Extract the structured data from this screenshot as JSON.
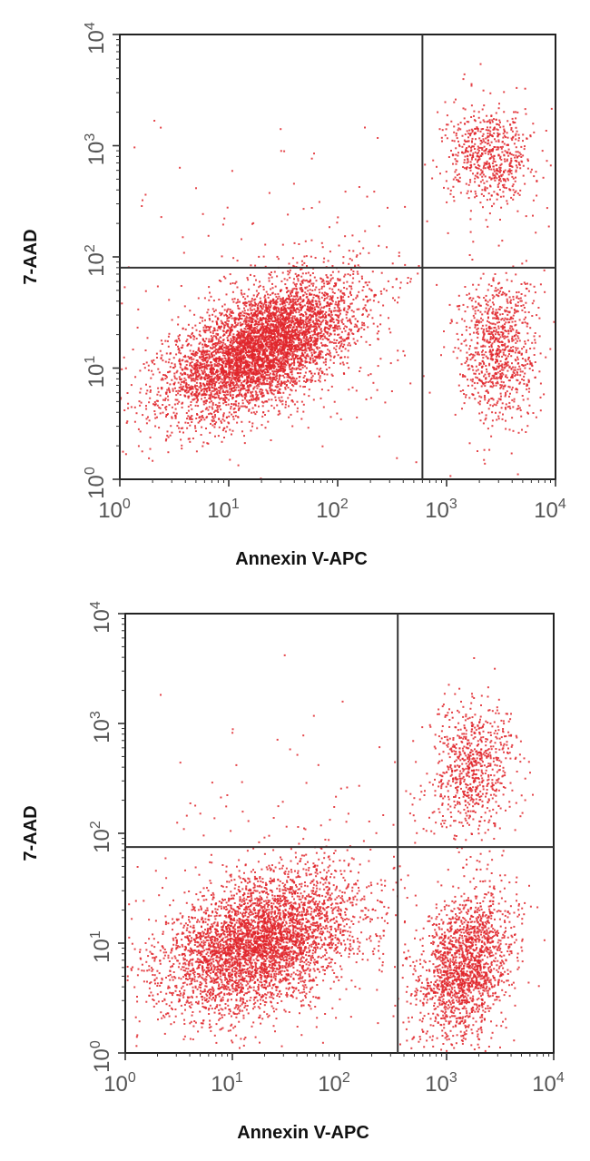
{
  "chart_data": [
    {
      "type": "scatter",
      "title": "",
      "xlabel": "Annexin V-APC",
      "ylabel": "7-AAD",
      "xscale": "log",
      "yscale": "log",
      "xlim": [
        1,
        10000
      ],
      "ylim": [
        1,
        10000
      ],
      "x_ticks": [
        {
          "value": 1,
          "base": "10",
          "exp": "0"
        },
        {
          "value": 10,
          "base": "10",
          "exp": "1"
        },
        {
          "value": 100,
          "base": "10",
          "exp": "2"
        },
        {
          "value": 1000,
          "base": "10",
          "exp": "3"
        },
        {
          "value": 10000,
          "base": "10",
          "exp": "4"
        }
      ],
      "y_ticks": [
        {
          "value": 1,
          "base": "10",
          "exp": "0"
        },
        {
          "value": 10,
          "base": "10",
          "exp": "1"
        },
        {
          "value": 100,
          "base": "10",
          "exp": "2"
        },
        {
          "value": 1000,
          "base": "10",
          "exp": "3"
        },
        {
          "value": 10000,
          "base": "10",
          "exp": "4"
        }
      ],
      "gates": {
        "x": 600,
        "y": 80
      },
      "point_color": "#e0262b",
      "grid": false,
      "legend": "none",
      "clusters": [
        {
          "cx": 20,
          "cy": 15,
          "n": 5200,
          "spread_x": 0.42,
          "spread_y": 0.3,
          "corr": 0.55
        },
        {
          "cx": 3000,
          "cy": 15,
          "n": 900,
          "spread_x": 0.18,
          "spread_y": 0.33,
          "corr": 0.0
        },
        {
          "cx": 2500,
          "cy": 800,
          "n": 650,
          "spread_x": 0.2,
          "spread_y": 0.22,
          "corr": 0.0
        },
        {
          "cx": 40,
          "cy": 40,
          "n": 260,
          "spread_x": 0.9,
          "spread_y": 0.7,
          "corr": 0.0
        }
      ]
    },
    {
      "type": "scatter",
      "title": "",
      "xlabel": "Annexin V-APC",
      "ylabel": "7-AAD",
      "xscale": "log",
      "yscale": "log",
      "xlim": [
        1,
        10000
      ],
      "ylim": [
        1,
        10000
      ],
      "x_ticks": [
        {
          "value": 1,
          "base": "10",
          "exp": "0"
        },
        {
          "value": 10,
          "base": "10",
          "exp": "1"
        },
        {
          "value": 100,
          "base": "10",
          "exp": "2"
        },
        {
          "value": 1000,
          "base": "10",
          "exp": "3"
        },
        {
          "value": 10000,
          "base": "10",
          "exp": "4"
        }
      ],
      "y_ticks": [
        {
          "value": 1,
          "base": "10",
          "exp": "0"
        },
        {
          "value": 10,
          "base": "10",
          "exp": "1"
        },
        {
          "value": 100,
          "base": "10",
          "exp": "2"
        },
        {
          "value": 1000,
          "base": "10",
          "exp": "3"
        },
        {
          "value": 10000,
          "base": "10",
          "exp": "4"
        }
      ],
      "gates": {
        "x": 350,
        "y": 75
      },
      "point_color": "#e0262b",
      "grid": false,
      "legend": "none",
      "clusters": [
        {
          "cx": 18,
          "cy": 10,
          "n": 4200,
          "spread_x": 0.45,
          "spread_y": 0.32,
          "corr": 0.4
        },
        {
          "cx": 1500,
          "cy": 6,
          "n": 1800,
          "spread_x": 0.22,
          "spread_y": 0.35,
          "corr": 0.3
        },
        {
          "cx": 1800,
          "cy": 400,
          "n": 750,
          "spread_x": 0.2,
          "spread_y": 0.3,
          "corr": 0.2
        },
        {
          "cx": 60,
          "cy": 30,
          "n": 220,
          "spread_x": 0.9,
          "spread_y": 0.7,
          "corr": 0.0
        }
      ]
    }
  ]
}
